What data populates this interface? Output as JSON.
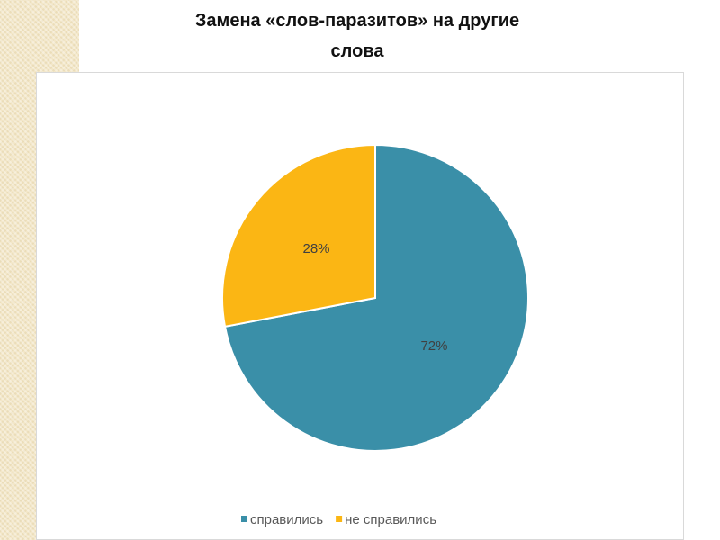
{
  "chart_data": {
    "type": "pie",
    "title": "Замена «слов-паразитов» на другие слова",
    "categories": [
      "справились",
      "не справились"
    ],
    "values": [
      72,
      28
    ],
    "value_labels": [
      "72%",
      "28%"
    ],
    "colors": [
      "#3a8fa8",
      "#fbb614"
    ],
    "legend": "bottom"
  }
}
